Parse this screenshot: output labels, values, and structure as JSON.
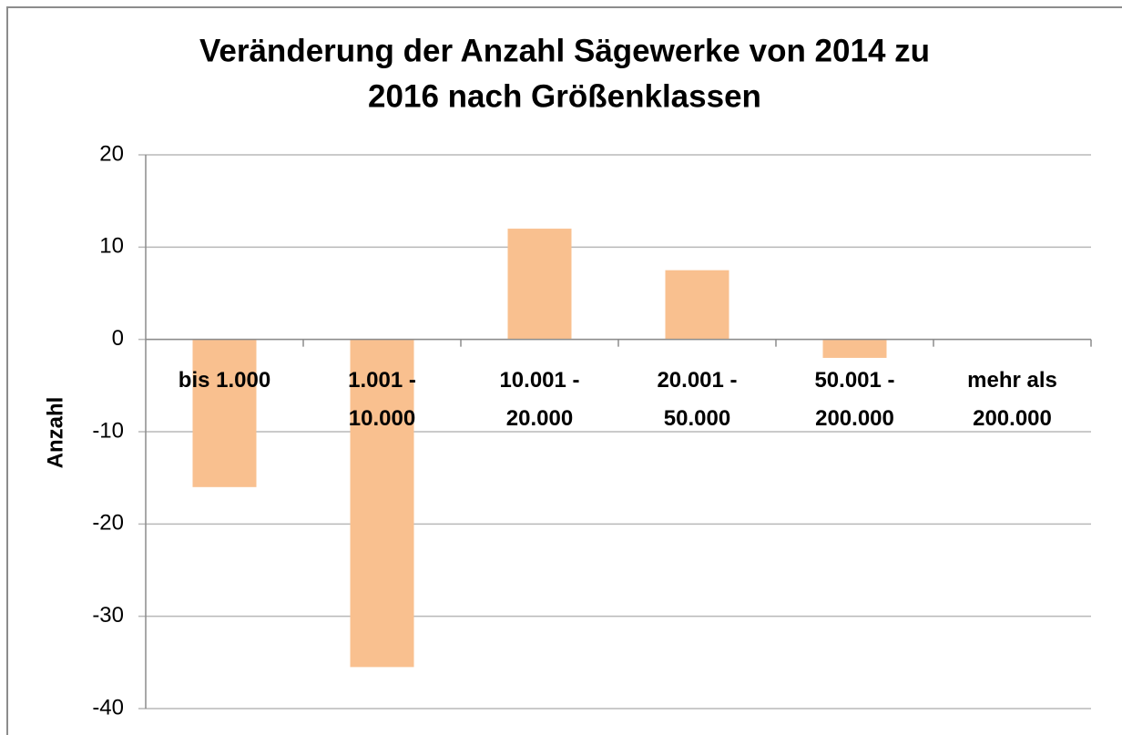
{
  "chart_data": {
    "type": "bar",
    "title": [
      "Veränderung der Anzahl Sägewerke von 2014 zu",
      "2016 nach Größenklassen"
    ],
    "y_label": "Anzahl",
    "categories": [
      [
        "bis 1.000"
      ],
      [
        "1.001 -",
        "10.000"
      ],
      [
        "10.001 -",
        "20.000"
      ],
      [
        "20.001 -",
        "50.000"
      ],
      [
        "50.001 -",
        "200.000"
      ],
      [
        "mehr als",
        "200.000"
      ]
    ],
    "values": [
      -16,
      -35.5,
      12,
      7.5,
      -2,
      0
    ],
    "color": "#f9c08f",
    "ylim": [
      -40,
      20
    ],
    "yticks": [
      -40,
      -30,
      -20,
      -10,
      0,
      10,
      20
    ],
    "grid": true
  }
}
